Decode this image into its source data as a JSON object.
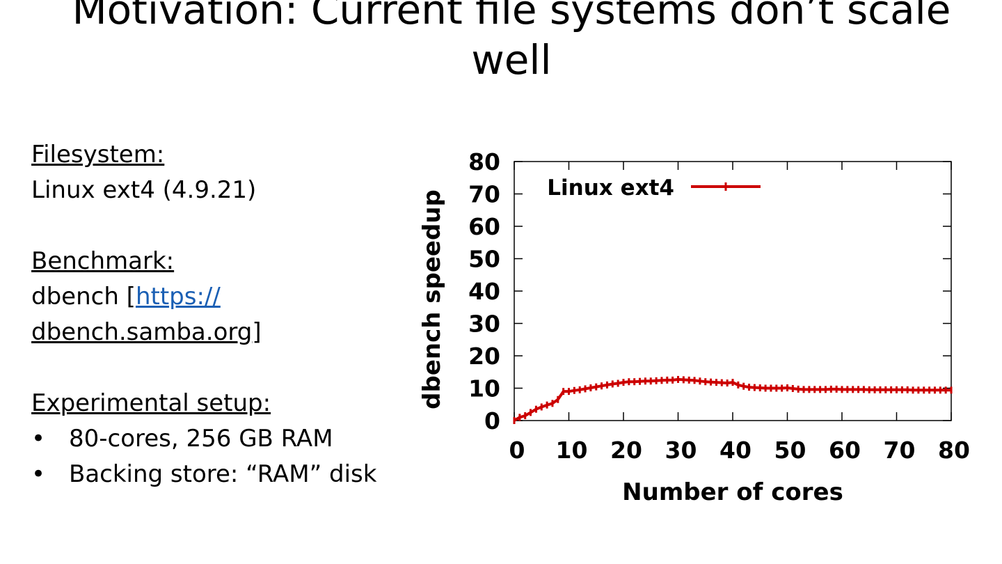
{
  "slide": {
    "title": "Motivation: Current file systems don’t scale well"
  },
  "left": {
    "fs_heading": "Filesystem:",
    "fs_value": "Linux ext4 (4.9.21)",
    "bench_heading": "Benchmark:",
    "bench_prefix": "dbench [",
    "bench_link_part1": "https://",
    "bench_link_part2": "dbench.samba.org",
    "bench_suffix": "]",
    "setup_heading": "Experimental setup:",
    "bullet_char": "•",
    "bullets": [
      "80-cores, 256 GB RAM",
      "Backing store: “RAM” disk"
    ]
  },
  "colors": {
    "series": "#cc0000",
    "link": "#1a5fb4"
  },
  "chart_data": {
    "type": "line",
    "xlabel": "Number of cores",
    "ylabel": "dbench speedup",
    "xlim": [
      0,
      80
    ],
    "ylim": [
      0,
      80
    ],
    "xticks": [
      0,
      10,
      20,
      30,
      40,
      50,
      60,
      70,
      80
    ],
    "yticks": [
      0,
      10,
      20,
      30,
      40,
      50,
      60,
      70,
      80
    ],
    "grid": false,
    "legend": "top-left",
    "series": [
      {
        "name": "Linux ext4",
        "x": [
          0,
          1,
          2,
          3,
          4,
          5,
          6,
          7,
          8,
          9,
          10,
          11,
          12,
          13,
          14,
          15,
          16,
          17,
          18,
          19,
          20,
          21,
          22,
          23,
          24,
          25,
          26,
          27,
          28,
          29,
          30,
          31,
          32,
          33,
          34,
          35,
          36,
          37,
          38,
          39,
          40,
          41,
          42,
          43,
          44,
          45,
          46,
          47,
          48,
          49,
          50,
          51,
          52,
          53,
          54,
          55,
          56,
          57,
          58,
          59,
          60,
          61,
          62,
          63,
          64,
          65,
          66,
          67,
          68,
          69,
          70,
          71,
          72,
          73,
          74,
          75,
          76,
          77,
          78,
          79,
          80
        ],
        "y": [
          0,
          1,
          1.5,
          2.5,
          3.5,
          4.2,
          4.8,
          5.3,
          6.5,
          9,
          9,
          9.3,
          9.5,
          9.8,
          10.1,
          10.4,
          10.7,
          11,
          11.3,
          11.5,
          11.8,
          12,
          12,
          12.1,
          12.2,
          12.2,
          12.3,
          12.4,
          12.5,
          12.5,
          12.7,
          12.6,
          12.5,
          12.4,
          12.2,
          12,
          11.9,
          11.8,
          11.7,
          11.6,
          11.8,
          11,
          10.6,
          10.3,
          10.2,
          10.1,
          10,
          10,
          10,
          10,
          10.1,
          9.9,
          9.7,
          9.6,
          9.6,
          9.6,
          9.6,
          9.6,
          9.7,
          9.7,
          9.6,
          9.6,
          9.6,
          9.6,
          9.6,
          9.5,
          9.5,
          9.5,
          9.5,
          9.5,
          9.5,
          9.5,
          9.5,
          9.4,
          9.4,
          9.4,
          9.4,
          9.4,
          9.4,
          9.4,
          9.4
        ]
      }
    ]
  }
}
